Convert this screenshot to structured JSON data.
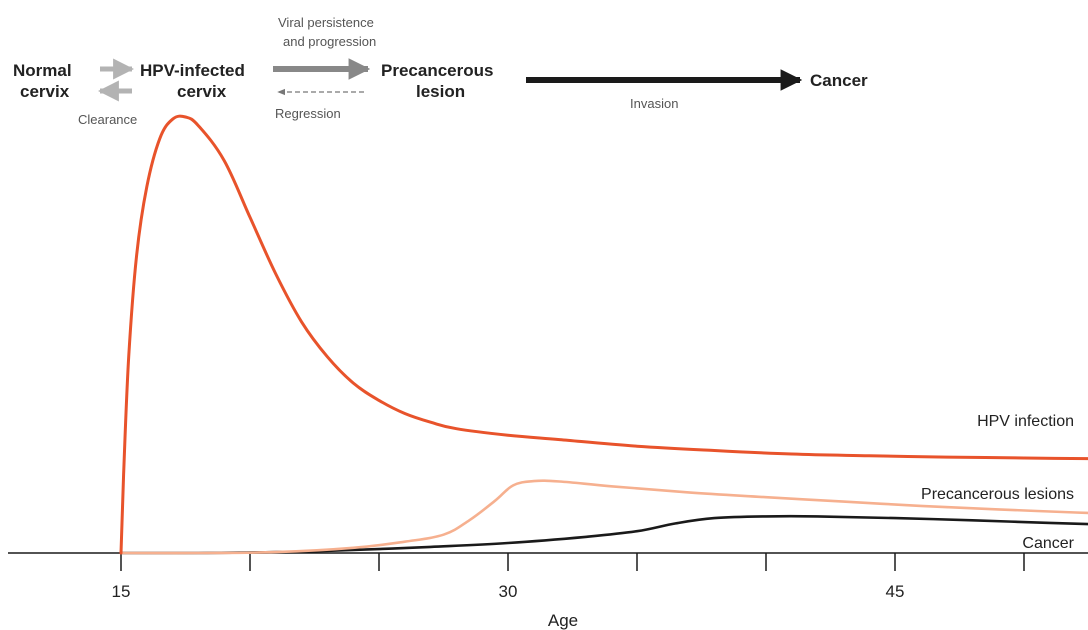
{
  "chart_data": {
    "type": "line",
    "xlabel": "Age",
    "xticks": [
      15,
      30,
      45
    ],
    "xlim": [
      11,
      57
    ],
    "ylim": [
      0,
      100
    ],
    "series": [
      {
        "name": "HPV infection",
        "color": "#E8532B",
        "points": [
          [
            15,
            0
          ],
          [
            15.1,
            18
          ],
          [
            15.3,
            45
          ],
          [
            15.6,
            68
          ],
          [
            16,
            84
          ],
          [
            16.5,
            95
          ],
          [
            17,
            99.5
          ],
          [
            17.5,
            100
          ],
          [
            18,
            98
          ],
          [
            19,
            90
          ],
          [
            20,
            77
          ],
          [
            21,
            64
          ],
          [
            22,
            53
          ],
          [
            23,
            45
          ],
          [
            24,
            39
          ],
          [
            25,
            35
          ],
          [
            26,
            32
          ],
          [
            27,
            30
          ],
          [
            28,
            28.5
          ],
          [
            30,
            27
          ],
          [
            32,
            26
          ],
          [
            35,
            24.5
          ],
          [
            38,
            23.5
          ],
          [
            41,
            22.7
          ],
          [
            44,
            22.3
          ],
          [
            47,
            22
          ],
          [
            50,
            21.8
          ],
          [
            53,
            21.6
          ],
          [
            57,
            21.5
          ]
        ]
      },
      {
        "name": "Precancerous lesions",
        "color": "#F6B08F",
        "points": [
          [
            15,
            0
          ],
          [
            18,
            0
          ],
          [
            21,
            0.2
          ],
          [
            24,
            1.2
          ],
          [
            26,
            2.6
          ],
          [
            27.5,
            4.2
          ],
          [
            28.5,
            7.5
          ],
          [
            29.5,
            12
          ],
          [
            30.2,
            15.5
          ],
          [
            31,
            16.5
          ],
          [
            32,
            16.4
          ],
          [
            34,
            15.3
          ],
          [
            37,
            13.9
          ],
          [
            40,
            12.8
          ],
          [
            43,
            11.8
          ],
          [
            46,
            10.8
          ],
          [
            49,
            10
          ],
          [
            52,
            9.3
          ],
          [
            55,
            8.7
          ],
          [
            57,
            8.4
          ]
        ]
      },
      {
        "name": "Cancer",
        "color": "#1A1A1A",
        "points": [
          [
            15,
            0
          ],
          [
            18,
            0
          ],
          [
            21,
            0.2
          ],
          [
            24,
            0.7
          ],
          [
            27,
            1.4
          ],
          [
            30,
            2.3
          ],
          [
            33,
            3.7
          ],
          [
            35,
            5
          ],
          [
            36.5,
            6.8
          ],
          [
            38,
            8
          ],
          [
            40,
            8.4
          ],
          [
            42,
            8.4
          ],
          [
            45,
            8
          ],
          [
            48,
            7.5
          ],
          [
            51,
            6.9
          ],
          [
            54,
            6.4
          ],
          [
            57,
            6
          ]
        ]
      }
    ],
    "labels": {
      "hpv": "HPV infection",
      "precancer": "Precancerous lesions",
      "cancer": "Cancer"
    }
  },
  "diagram": {
    "normal_1": "Normal",
    "normal_2": "cervix",
    "hpv_1": "HPV-infected",
    "hpv_2": "cervix",
    "precancer_1": "Precancerous",
    "precancer_2": "lesion",
    "cancer": "Cancer",
    "persistence_1": "Viral persistence",
    "persistence_2": "and progression",
    "regression": "Regression",
    "clearance": "Clearance",
    "invasion": "Invasion"
  },
  "colors": {
    "hpv": "#E8532B",
    "precancer": "#F6B08F",
    "cancer": "#1A1A1A",
    "arrow_light": "#B3B3B3",
    "arrow_mid": "#888888",
    "arrow_dark": "#1A1A1A"
  }
}
